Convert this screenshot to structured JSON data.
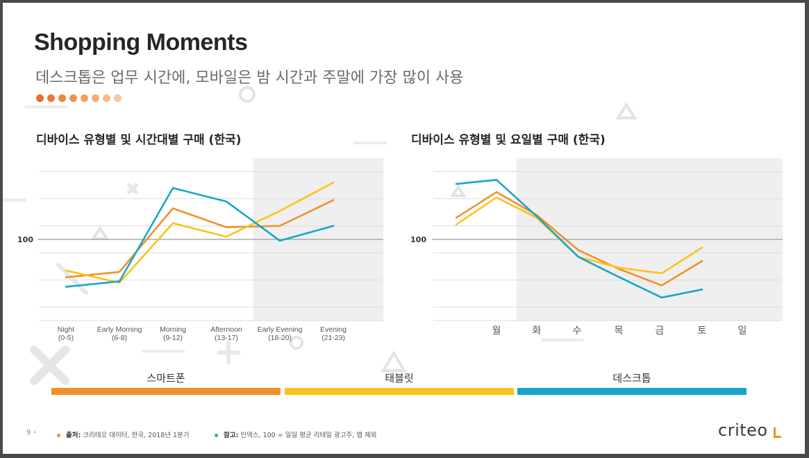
{
  "slide": {
    "title": "Shopping Moments",
    "subtitle": "데스크톱은 업무 시간에, 모바일은 밤 시간과 주말에 가장 많이 사용",
    "dot_colors": [
      "#e8702a",
      "#ea7a33",
      "#ed8640",
      "#ef924f",
      "#f19f60",
      "#f3ad73",
      "#f5bb88",
      "#f7c99d"
    ],
    "page_number": "9"
  },
  "colors": {
    "smartphone": "#f0902a",
    "tablet": "#fbc21a",
    "desktop": "#16a6cc",
    "shade": "#efefef",
    "grid": "#dddddd",
    "baseline": "#aaaaaa"
  },
  "chart_data": [
    {
      "type": "line",
      "title": "디바이스 유형별 및 시간대별 구매 (한국)",
      "categories": [
        [
          "Night",
          "(0-5)"
        ],
        [
          "Early Morning",
          "(6-8)"
        ],
        [
          "Morning",
          "(9-12)"
        ],
        [
          "Afternoon",
          "(13-17)"
        ],
        [
          "Early Evening",
          "(18-20)"
        ],
        [
          "Evening",
          "(21-23)"
        ]
      ],
      "y_tick_label": "100",
      "y_tick_value": 100,
      "ylim": [
        40,
        160
      ],
      "shaded_from_index": 4,
      "grid": true,
      "series": [
        {
          "name": "스마트폰",
          "color_key": "smartphone",
          "values": [
            72,
            76,
            123,
            109,
            110,
            129
          ]
        },
        {
          "name": "태블릿",
          "color_key": "tablet",
          "values": [
            77,
            68,
            112,
            102,
            121,
            142
          ]
        },
        {
          "name": "데스크톱",
          "color_key": "desktop",
          "values": [
            65,
            69,
            138,
            128,
            99,
            110
          ]
        }
      ]
    },
    {
      "type": "line",
      "title": "디바이스 유형별 및 요일별 구매 (한국)",
      "categories": [
        "월",
        "화",
        "수",
        "목",
        "금",
        "토",
        "일"
      ],
      "y_tick_label": "100",
      "y_tick_value": 100,
      "ylim": [
        40,
        160
      ],
      "shaded_from_index": 2,
      "grid": true,
      "series": [
        {
          "name": "스마트폰",
          "color_key": "smartphone",
          "values": [
            116,
            135,
            118,
            92,
            78,
            66,
            84
          ]
        },
        {
          "name": "태블릿",
          "color_key": "tablet",
          "values": [
            111,
            131,
            116,
            87,
            79,
            75,
            94
          ]
        },
        {
          "name": "데스크톱",
          "color_key": "desktop",
          "values": [
            141,
            144,
            117,
            87,
            72,
            57,
            63
          ]
        }
      ]
    }
  ],
  "legend": [
    {
      "label": "스마트폰",
      "color_key": "smartphone"
    },
    {
      "label": "태블릿",
      "color_key": "tablet"
    },
    {
      "label": "데스크톱",
      "color_key": "desktop"
    }
  ],
  "footer": {
    "source_bold": "출처:",
    "source_text": "크리테오 데이터, 한국, 2018년 1분기",
    "note_bold": "참고:",
    "note_text": "인덱스, 100 = 일일 평균 리테일 광고주, 앱 제외",
    "source_dot_color": "#f0902a",
    "note_dot_color": "#1cb8a0"
  },
  "logo": {
    "text": "criteo"
  }
}
